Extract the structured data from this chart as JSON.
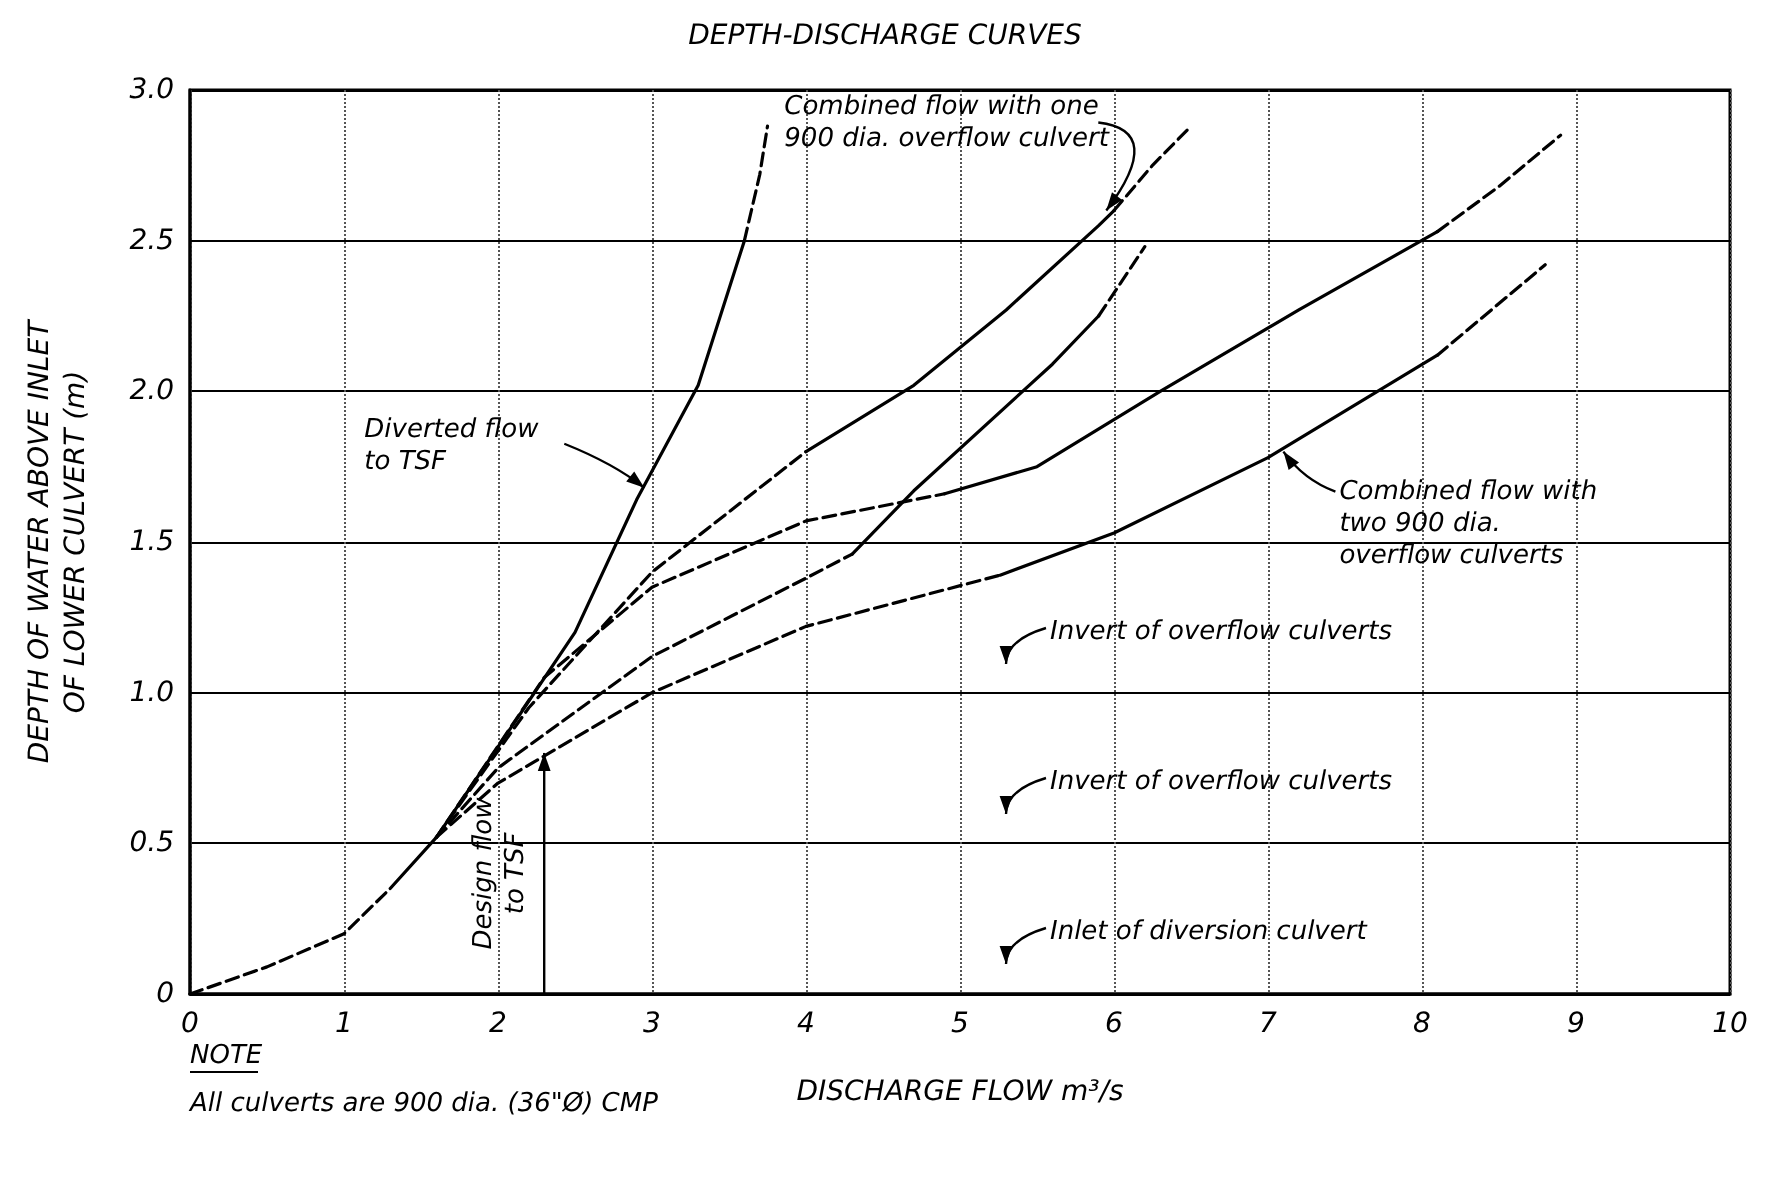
{
  "chart_data": {
    "type": "line",
    "title": "DEPTH-DISCHARGE CURVES",
    "xlabel": "DISCHARGE FLOW m³/s",
    "ylabel": "DEPTH OF WATER ABOVE INLET\nOF LOWER CULVERT (m)",
    "xlim": [
      0,
      10
    ],
    "xticks": [
      0,
      1,
      2,
      3,
      4,
      5,
      6,
      7,
      8,
      9,
      10
    ],
    "ylim": [
      0,
      3
    ],
    "yticks": [
      0,
      0.5,
      {
        "value": 1,
        "label": "1.0"
      },
      1.5,
      {
        "value": 2,
        "label": "2.0"
      },
      2.5,
      {
        "value": 3,
        "label": "3.0"
      }
    ],
    "grid": true,
    "series": [
      {
        "color": "#000000",
        "line_style": "dashed",
        "x": [
          0,
          0.5,
          1,
          1.3
        ],
        "values": [
          0,
          0.09,
          0.2,
          0.35
        ]
      },
      {
        "color": "#000000",
        "line_style": "solid",
        "x": [
          1.3,
          1.6,
          2.0,
          2.5,
          2.9,
          3.3,
          3.6
        ],
        "values": [
          0.35,
          0.52,
          0.82,
          1.2,
          1.64,
          2.02,
          2.5
        ]
      },
      {
        "color": "#000000",
        "line_style": "dashed",
        "x": [
          3.6,
          3.7,
          3.75
        ],
        "values": [
          2.5,
          2.72,
          2.88
        ]
      },
      {
        "color": "#000000",
        "line_style": "dashed",
        "x": [
          1.6,
          2.2,
          3.0,
          4.0
        ],
        "values": [
          0.52,
          0.95,
          1.4,
          1.8
        ]
      },
      {
        "color": "#000000",
        "line_style": "solid",
        "x": [
          4.0,
          4.7,
          5.3,
          5.9,
          6.0
        ],
        "values": [
          1.8,
          2.02,
          2.27,
          2.55,
          2.6
        ]
      },
      {
        "color": "#000000",
        "line_style": "dashed",
        "x": [
          6.0,
          6.25,
          6.5
        ],
        "values": [
          2.6,
          2.75,
          2.88
        ]
      },
      {
        "color": "#000000",
        "line_style": "dashed",
        "x": [
          1.6,
          2.0,
          3.0,
          4.0,
          4.3
        ],
        "values": [
          0.52,
          0.75,
          1.12,
          1.38,
          1.46
        ]
      },
      {
        "color": "#000000",
        "line_style": "solid",
        "x": [
          4.3,
          4.7,
          5.6,
          5.9
        ],
        "values": [
          1.46,
          1.67,
          2.09,
          2.25
        ]
      },
      {
        "color": "#000000",
        "line_style": "dashed",
        "x": [
          5.9,
          6.2
        ],
        "values": [
          2.25,
          2.48
        ]
      },
      {
        "color": "#000000",
        "line_style": "dashed",
        "x": [
          1.6,
          2.3,
          3.0,
          4.0,
          4.9
        ],
        "values": [
          0.52,
          1.05,
          1.35,
          1.57,
          1.66
        ]
      },
      {
        "color": "#000000",
        "line_style": "solid",
        "x": [
          4.9,
          5.5,
          6.3,
          7.2,
          8.1
        ],
        "values": [
          1.66,
          1.75,
          2.0,
          2.27,
          2.53
        ]
      },
      {
        "color": "#000000",
        "line_style": "dashed",
        "x": [
          8.1,
          8.5,
          8.9
        ],
        "values": [
          2.53,
          2.68,
          2.85
        ]
      },
      {
        "color": "#000000",
        "line_style": "dashed",
        "x": [
          1.6,
          2.0,
          3.0,
          4.0,
          5.26
        ],
        "values": [
          0.52,
          0.7,
          1.0,
          1.22,
          1.39
        ]
      },
      {
        "color": "#000000",
        "line_style": "solid",
        "x": [
          5.26,
          6.0,
          7.0,
          8.1
        ],
        "values": [
          1.39,
          1.53,
          1.78,
          2.12
        ]
      },
      {
        "color": "#000000",
        "line_style": "dashed",
        "x": [
          8.1,
          8.8
        ],
        "values": [
          2.12,
          2.42
        ]
      }
    ],
    "annotations": [
      {
        "text": "Combined flow with one\n900 dia. overflow culvert",
        "x": 5.95,
        "y": 2.6
      },
      {
        "text": "Diverted flow\nto TSF",
        "x": 2.95,
        "y": 1.68
      },
      {
        "text": "Combined flow with\ntwo 900 dia.\noverflow culverts",
        "x": 7.1,
        "y": 1.8
      },
      {
        "text": "Design flow\nto TSF",
        "x": 2.3,
        "y": 0.8
      },
      "Invert of overflow culverts",
      "Invert of overflow culverts",
      "Inlet of diversion culvert",
      "NOTE",
      "All culverts are 900 dia. (36\"Ø) CMP"
    ]
  }
}
